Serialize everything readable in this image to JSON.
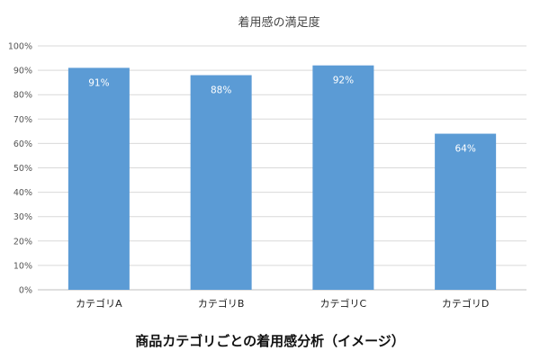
{
  "caption": "商品カテゴリごとの着用感分析（イメージ）",
  "colors": {
    "bar": "#5b9bd5",
    "grid": "#d9d9d9",
    "axis": "#bfbfbf",
    "bar_label": "#ffffff"
  },
  "chart_data": {
    "type": "bar",
    "title": "着用感の満足度",
    "categories": [
      "カテゴリA",
      "カテゴリB",
      "カテゴリC",
      "カテゴリD"
    ],
    "values": [
      91,
      88,
      92,
      64
    ],
    "value_labels": [
      "91%",
      "88%",
      "92%",
      "64%"
    ],
    "ylim": [
      0,
      100
    ],
    "yticks": [
      0,
      10,
      20,
      30,
      40,
      50,
      60,
      70,
      80,
      90,
      100
    ],
    "ytick_labels": [
      "0%",
      "10%",
      "20%",
      "30%",
      "40%",
      "50%",
      "60%",
      "70%",
      "80%",
      "90%",
      "100%"
    ],
    "grid": true,
    "legend": "none"
  }
}
